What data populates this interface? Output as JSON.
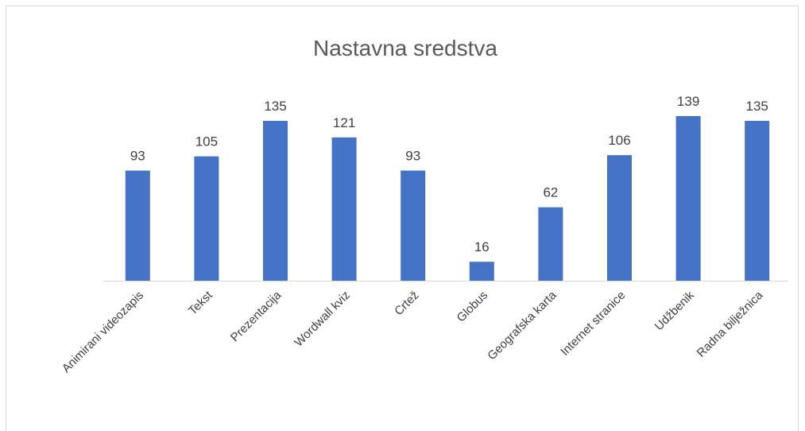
{
  "chart_data": {
    "type": "bar",
    "title": "Nastavna sredstva",
    "categories": [
      "Animirani videozapis",
      "Tekst",
      "Prezentacija",
      "Wordwall kviz",
      "Crtež",
      "Globus",
      "Geografska karta",
      "Internet stranice",
      "Udžbenik",
      "Radna bilježnica"
    ],
    "values": [
      93,
      105,
      135,
      121,
      93,
      16,
      62,
      106,
      139,
      135
    ],
    "color": "#4472c4"
  }
}
